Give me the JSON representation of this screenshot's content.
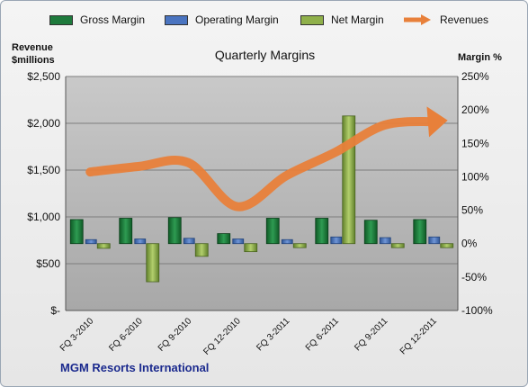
{
  "chart_data": {
    "type": "bar",
    "title": "Quarterly Margins",
    "categories": [
      "FQ 3-2010",
      "FQ 6-2010",
      "FQ 9-2010",
      "FQ 12-2010",
      "FQ 3-2011",
      "FQ 6-2011",
      "FQ 9-2011",
      "FQ 12-2011"
    ],
    "series": [
      {
        "name": "Gross Margin",
        "axis": "right",
        "kind": "bar",
        "color": "#1e7a3c",
        "values": [
          36,
          38,
          39,
          15,
          38,
          38,
          35,
          36
        ]
      },
      {
        "name": "Operating Margin",
        "axis": "right",
        "kind": "bar",
        "color": "#4a74c0",
        "values": [
          6,
          7,
          8,
          7,
          6,
          10,
          9,
          10
        ]
      },
      {
        "name": "Net Margin",
        "axis": "right",
        "kind": "bar",
        "color": "#8fb04a",
        "values": [
          -7,
          -57,
          -19,
          -12,
          -6,
          191,
          -6,
          -6
        ]
      },
      {
        "name": "Revenues",
        "axis": "left",
        "kind": "line",
        "color": "#e8803a",
        "values": [
          1480,
          1540,
          1580,
          1110,
          1440,
          1690,
          1980,
          2020
        ]
      }
    ],
    "y_left": {
      "label": "Revenue\n$millions",
      "ylim": [
        0,
        2500
      ],
      "ticks": [
        "$-",
        "$500",
        "$1,000",
        "$1,500",
        "$2,000",
        "$2,500"
      ],
      "tick_values": [
        0,
        500,
        1000,
        1500,
        2000,
        2500
      ]
    },
    "y_right": {
      "label": "Margin %",
      "ylim": [
        -100,
        250
      ],
      "ticks": [
        "-100%",
        "-50%",
        "0%",
        "50%",
        "100%",
        "150%",
        "200%",
        "250%"
      ],
      "tick_values": [
        -100,
        -50,
        0,
        50,
        100,
        150,
        200,
        250
      ]
    },
    "grid": true,
    "legend_position": "top"
  },
  "legend": {
    "gross": "Gross Margin",
    "operating": "Operating Margin",
    "net": "Net Margin",
    "revenues": "Revenues"
  },
  "labels": {
    "left_axis_line1": "Revenue",
    "left_axis_line2": "$millions",
    "right_axis": "Margin %",
    "title": "Quarterly Margins",
    "company": "MGM Resorts International"
  }
}
